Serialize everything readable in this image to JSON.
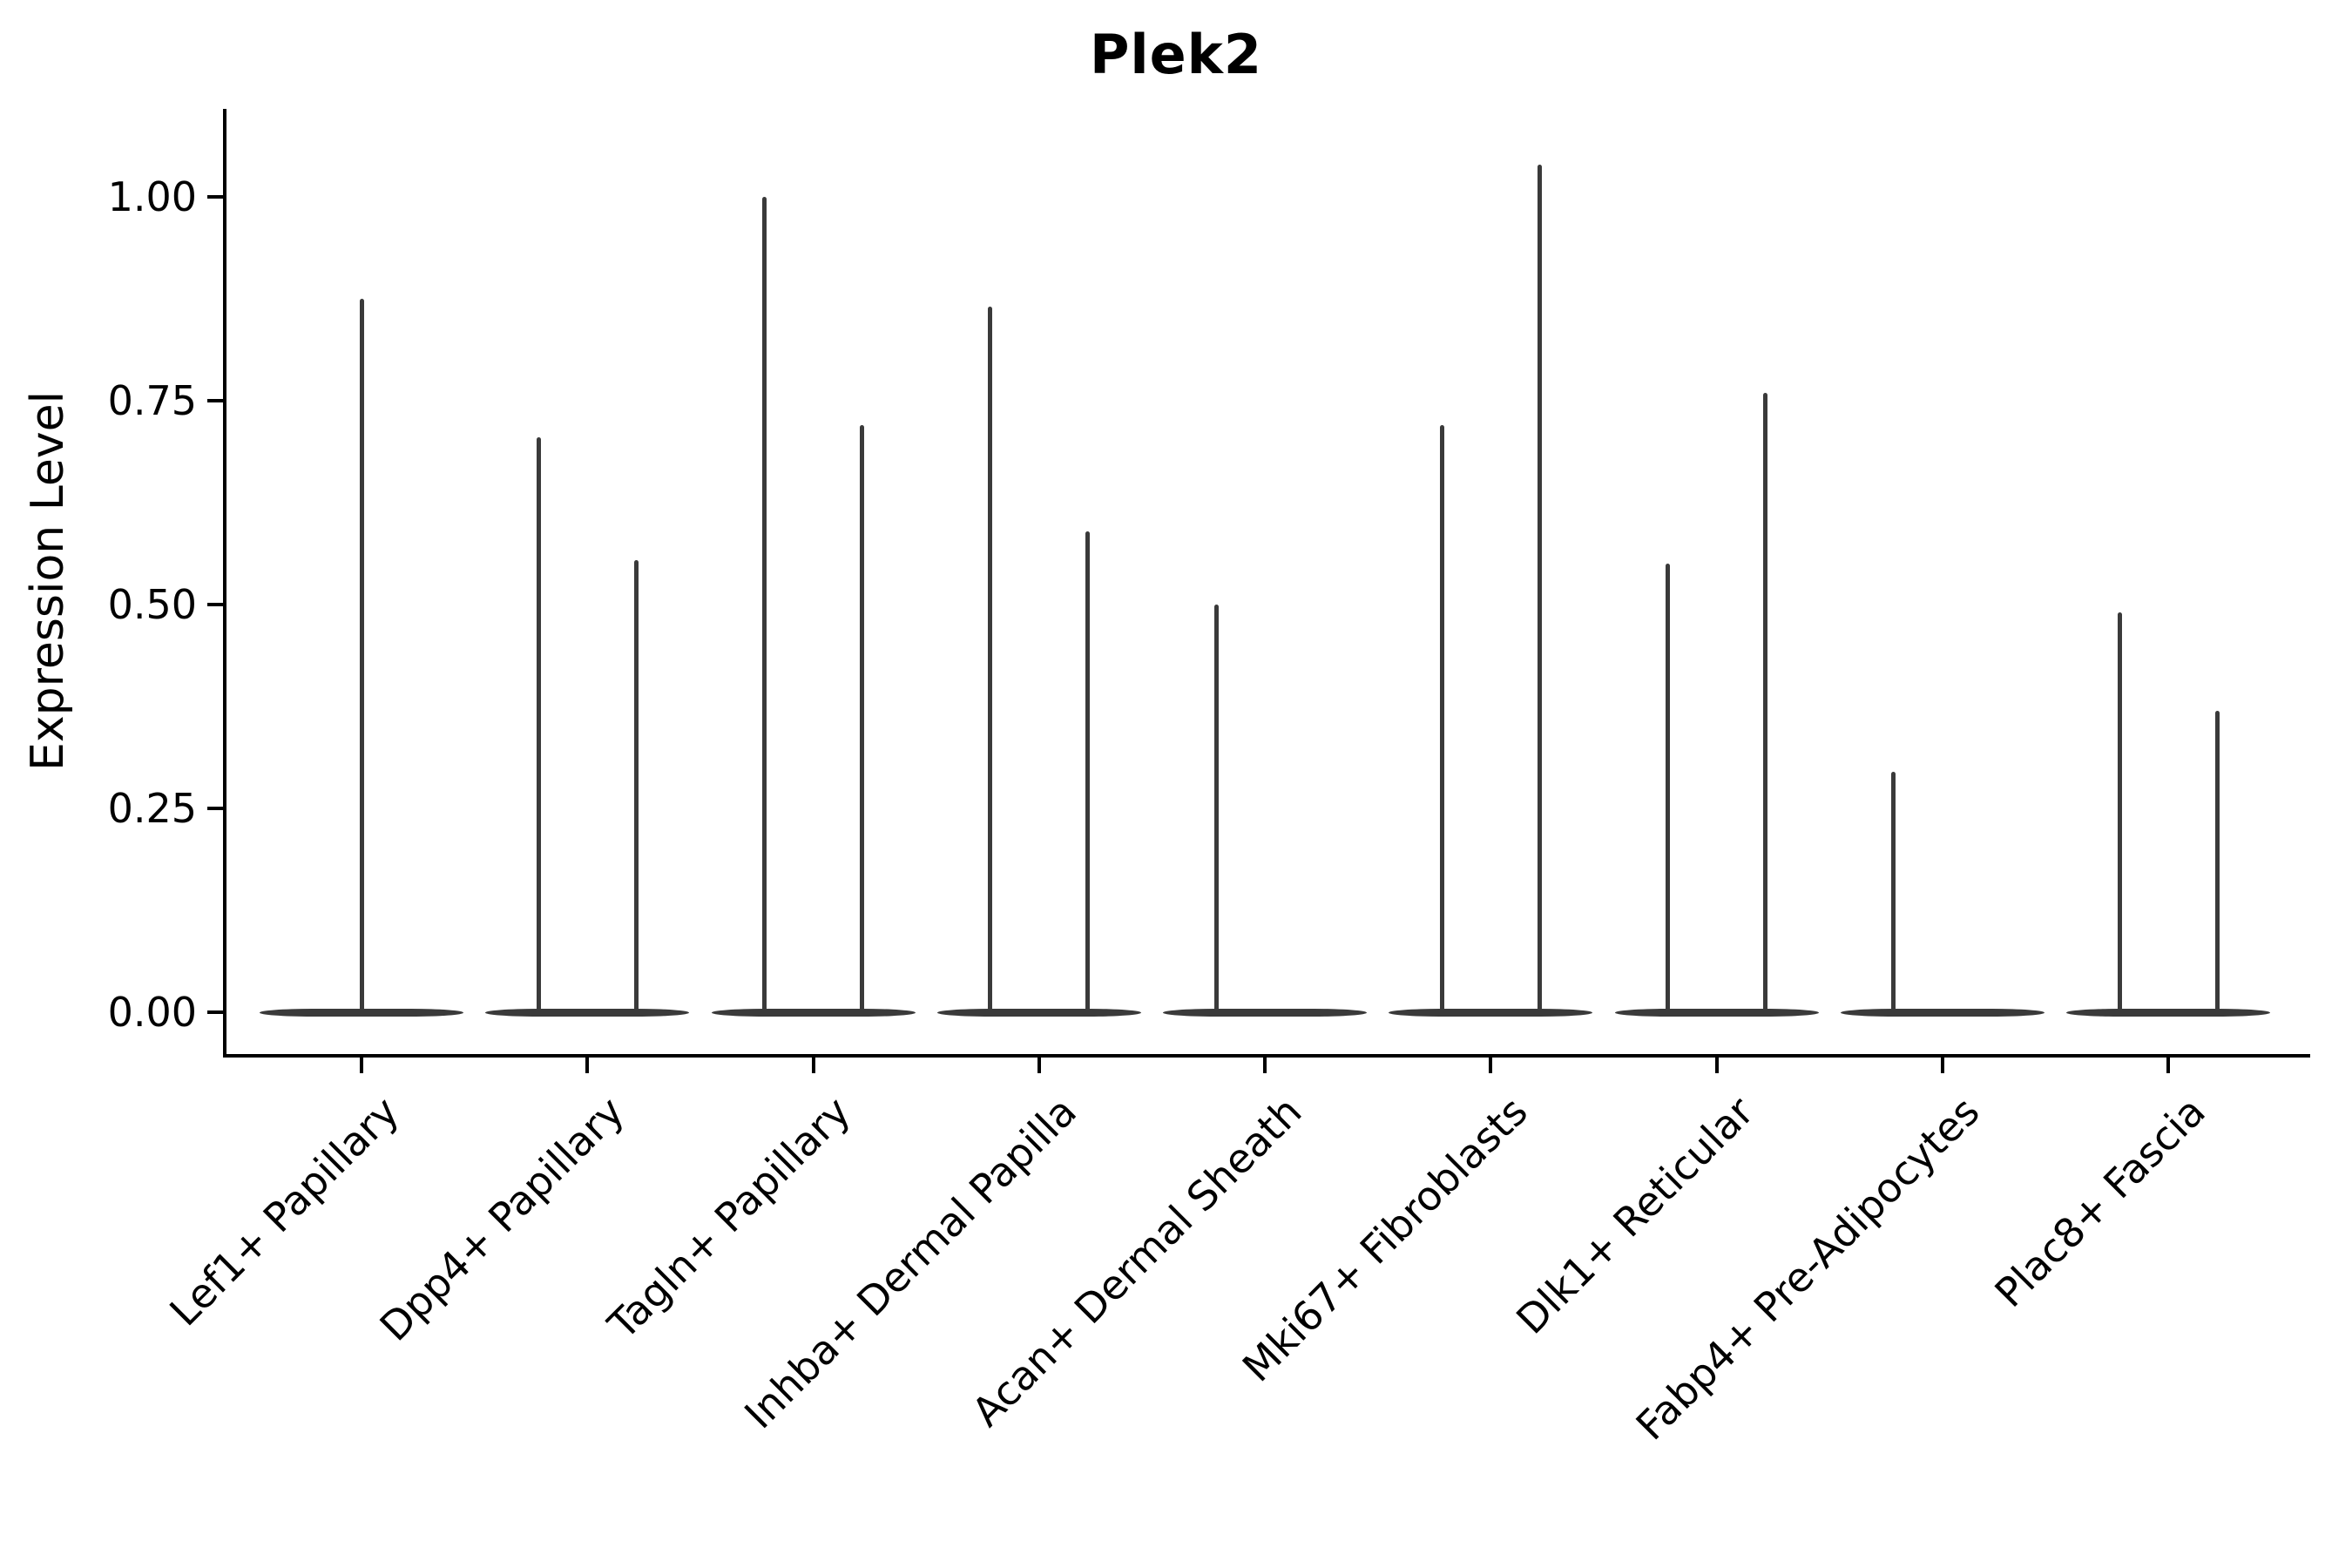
{
  "title": "Plek2",
  "y_axis": {
    "label": "Expression Level",
    "tick_labels": [
      "0.00",
      "0.25",
      "0.50",
      "0.75",
      "1.00"
    ],
    "tick_values": [
      0,
      0.25,
      0.5,
      0.75,
      1.0
    ]
  },
  "colors": {
    "violin": "#3a3a3a",
    "axis": "#000000",
    "text": "#000000",
    "background": "#ffffff"
  },
  "chart_data": {
    "type": "violin",
    "title": "Plek2",
    "xlabel": "",
    "ylabel": "Expression Level",
    "ylim": [
      0,
      1.09
    ],
    "yticks": [
      0,
      0.25,
      0.5,
      0.75,
      1.0
    ],
    "grid": false,
    "legend": "none",
    "categories": [
      "Lef1+ Papillary",
      "Dpp4+ Papillary",
      "Tagln+ Papillary",
      "Inhba+ Dermal Papilla",
      "Acan+ Dermal Sheath",
      "Mki67+ Fibroblasts",
      "Dlk1+ Reticular",
      "Fabp4+ Pre-Adipocytes",
      "Plac8+ Fascia"
    ],
    "series": [
      {
        "name": "Lef1+ Papillary",
        "bulk_at_zero": true,
        "peaks": [
          {
            "position": "center",
            "value": 0.875
          }
        ]
      },
      {
        "name": "Dpp4+ Papillary",
        "bulk_at_zero": true,
        "peaks": [
          {
            "position": "left",
            "value": 0.705
          },
          {
            "position": "right",
            "value": 0.555
          }
        ]
      },
      {
        "name": "Tagln+ Papillary",
        "bulk_at_zero": true,
        "peaks": [
          {
            "position": "left",
            "value": 1.0
          },
          {
            "position": "right",
            "value": 0.72
          }
        ]
      },
      {
        "name": "Inhba+ Dermal Papilla",
        "bulk_at_zero": true,
        "peaks": [
          {
            "position": "left",
            "value": 0.865
          },
          {
            "position": "right",
            "value": 0.59
          }
        ]
      },
      {
        "name": "Acan+ Dermal Sheath",
        "bulk_at_zero": true,
        "peaks": [
          {
            "position": "left",
            "value": 0.5
          }
        ]
      },
      {
        "name": "Mki67+ Fibroblasts",
        "bulk_at_zero": true,
        "peaks": [
          {
            "position": "left",
            "value": 0.72
          },
          {
            "position": "right",
            "value": 1.04
          }
        ]
      },
      {
        "name": "Dlk1+ Reticular",
        "bulk_at_zero": true,
        "peaks": [
          {
            "position": "left",
            "value": 0.55
          },
          {
            "position": "right",
            "value": 0.76
          }
        ]
      },
      {
        "name": "Fabp4+ Pre-Adipocytes",
        "bulk_at_zero": true,
        "peaks": [
          {
            "position": "left",
            "value": 0.295
          }
        ]
      },
      {
        "name": "Plac8+ Fascia",
        "bulk_at_zero": true,
        "peaks": [
          {
            "position": "left",
            "value": 0.49
          },
          {
            "position": "right",
            "value": 0.37
          }
        ]
      }
    ]
  }
}
